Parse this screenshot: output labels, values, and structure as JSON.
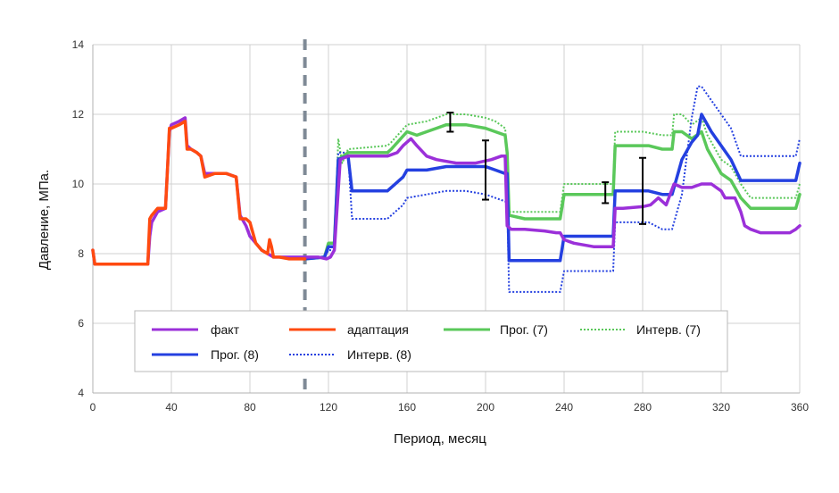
{
  "chart_data": {
    "type": "line",
    "xlabel": "Период, месяц",
    "ylabel": "Давление, МПа.",
    "xlim": [
      0,
      360
    ],
    "ylim": [
      4,
      14
    ],
    "x_ticks": [
      "0",
      "40",
      "80",
      "120",
      "160",
      "200",
      "240",
      "280",
      "320",
      "360"
    ],
    "y_ticks": [
      "4",
      "6",
      "8",
      "10",
      "12",
      "14"
    ],
    "grid": true,
    "legend_placement": "lower-center inside plot",
    "history_boundary_x": 108,
    "series": [
      {
        "name": "факт",
        "color": "#9b30d9",
        "style": "solid",
        "x": [
          0,
          1,
          2,
          28,
          29,
          30,
          33,
          37,
          38,
          39,
          40,
          44,
          47,
          48,
          50,
          53,
          55,
          57,
          62,
          68,
          73,
          75,
          78,
          80,
          83,
          86,
          89,
          92,
          95,
          100,
          105,
          110,
          115,
          119,
          121,
          123,
          126,
          130,
          140,
          150,
          155,
          158,
          162,
          165,
          170,
          175,
          185,
          195,
          203,
          208,
          210,
          211,
          213,
          220,
          230,
          236,
          238,
          240,
          245,
          255,
          265,
          266,
          270,
          280,
          284,
          288,
          292,
          296,
          300,
          305,
          310,
          315,
          320,
          322,
          327,
          330,
          332,
          335,
          340,
          350,
          355,
          358,
          360
        ],
        "y": [
          8.1,
          7.7,
          7.7,
          7.7,
          8.5,
          8.9,
          9.2,
          9.3,
          10.4,
          11.5,
          11.7,
          11.8,
          11.9,
          11.1,
          11.0,
          10.9,
          10.8,
          10.3,
          10.3,
          10.3,
          10.2,
          9.1,
          8.8,
          8.5,
          8.3,
          8.1,
          8.0,
          7.9,
          7.9,
          7.9,
          7.9,
          7.9,
          7.9,
          7.85,
          7.9,
          8.1,
          10.7,
          10.8,
          10.8,
          10.8,
          10.9,
          11.1,
          11.3,
          11.1,
          10.8,
          10.7,
          10.6,
          10.6,
          10.7,
          10.8,
          10.8,
          8.8,
          8.7,
          8.7,
          8.65,
          8.6,
          8.6,
          8.4,
          8.3,
          8.2,
          8.2,
          9.3,
          9.3,
          9.35,
          9.4,
          9.6,
          9.4,
          10.0,
          9.9,
          9.9,
          10.0,
          10.0,
          9.8,
          9.6,
          9.6,
          9.2,
          8.8,
          8.7,
          8.6,
          8.6,
          8.6,
          8.7,
          8.8
        ]
      },
      {
        "name": "адаптация",
        "color": "#ff4a10",
        "style": "solid",
        "x": [
          0,
          1,
          2,
          28,
          29,
          30,
          33,
          37,
          38,
          39,
          40,
          44,
          47,
          48,
          50,
          53,
          55,
          57,
          62,
          68,
          73,
          75,
          78,
          80,
          83,
          86,
          89,
          90,
          91,
          92,
          95,
          100,
          105,
          108
        ],
        "y": [
          8.1,
          7.7,
          7.7,
          7.7,
          9.0,
          9.1,
          9.3,
          9.3,
          10.4,
          11.6,
          11.6,
          11.7,
          11.8,
          11.0,
          11.0,
          10.9,
          10.8,
          10.2,
          10.3,
          10.3,
          10.2,
          9.0,
          9.0,
          8.9,
          8.3,
          8.1,
          8.0,
          8.4,
          8.2,
          7.9,
          7.9,
          7.85,
          7.85,
          7.85
        ]
      },
      {
        "name": "Прог. (7)",
        "color": "#5ac85a",
        "style": "solid",
        "x": [
          108,
          118,
          120,
          123,
          125,
          130,
          140,
          150,
          152,
          160,
          165,
          170,
          175,
          180,
          190,
          200,
          205,
          210,
          211,
          212,
          220,
          230,
          238,
          240,
          250,
          260,
          265,
          266,
          270,
          280,
          283,
          290,
          295,
          296,
          300,
          305,
          310,
          313,
          318,
          320,
          325,
          330,
          335,
          340,
          350,
          358,
          360
        ],
        "y": [
          7.85,
          7.9,
          8.3,
          8.3,
          10.7,
          10.9,
          10.9,
          10.9,
          11.0,
          11.5,
          11.4,
          11.5,
          11.6,
          11.7,
          11.7,
          11.6,
          11.5,
          11.4,
          10.9,
          9.1,
          9.0,
          9.0,
          9.0,
          9.7,
          9.7,
          9.7,
          9.7,
          11.1,
          11.1,
          11.1,
          11.1,
          11.0,
          11.0,
          11.5,
          11.5,
          11.3,
          11.5,
          11.0,
          10.5,
          10.3,
          10.1,
          9.6,
          9.3,
          9.3,
          9.3,
          9.3,
          9.7
        ]
      },
      {
        "name": "Интерв. (7)",
        "color": "#5ac85a",
        "style": "dotted",
        "x": [
          108,
          118,
          120,
          123,
          125,
          127,
          130,
          150,
          152,
          160,
          170,
          175,
          180,
          190,
          200,
          205,
          210,
          211,
          212,
          220,
          230,
          238,
          240,
          250,
          260,
          265,
          266,
          270,
          280,
          290,
          295,
          296,
          300,
          305,
          310,
          313,
          318,
          320,
          325,
          330,
          335,
          340,
          350,
          358,
          360
        ],
        "y": [
          7.85,
          7.9,
          8.2,
          8.2,
          11.3,
          10.6,
          11.0,
          11.1,
          11.2,
          11.7,
          11.8,
          11.9,
          12.0,
          12.0,
          11.9,
          11.8,
          11.6,
          10.8,
          9.2,
          9.2,
          9.2,
          9.2,
          10.0,
          10.0,
          10.0,
          10.0,
          11.5,
          11.5,
          11.5,
          11.4,
          11.4,
          12.0,
          12.0,
          11.7,
          11.9,
          11.4,
          10.9,
          10.7,
          10.5,
          10.0,
          9.6,
          9.6,
          9.6,
          9.6,
          10.0
        ]
      },
      {
        "name": "Прог. (8)",
        "color": "#2440e0",
        "style": "solid",
        "x": [
          108,
          118,
          120,
          123,
          125,
          130,
          132,
          140,
          150,
          158,
          160,
          170,
          180,
          190,
          200,
          205,
          210,
          211,
          212,
          220,
          230,
          238,
          240,
          250,
          260,
          265,
          266,
          270,
          280,
          283,
          290,
          295,
          300,
          305,
          308,
          310,
          315,
          320,
          325,
          330,
          340,
          350,
          358,
          360
        ],
        "y": [
          7.85,
          7.9,
          8.2,
          8.2,
          10.7,
          10.8,
          9.8,
          9.8,
          9.8,
          10.2,
          10.4,
          10.4,
          10.5,
          10.5,
          10.5,
          10.4,
          10.3,
          10.3,
          7.8,
          7.8,
          7.8,
          7.8,
          8.5,
          8.5,
          8.5,
          8.5,
          9.8,
          9.8,
          9.8,
          9.8,
          9.7,
          9.7,
          10.7,
          11.2,
          11.4,
          12.0,
          11.5,
          11.1,
          10.7,
          10.1,
          10.1,
          10.1,
          10.1,
          10.6
        ]
      },
      {
        "name": "Интерв. (8)",
        "color": "#2440e0",
        "style": "dotted",
        "x": [
          108,
          118,
          120,
          123,
          125,
          130,
          132,
          140,
          150,
          158,
          160,
          170,
          180,
          190,
          200,
          205,
          210,
          211,
          212,
          220,
          230,
          238,
          240,
          250,
          260,
          265,
          266,
          270,
          280,
          283,
          290,
          295,
          300,
          305,
          308,
          310,
          315,
          320,
          325,
          330,
          340,
          350,
          358,
          360
        ],
        "y": [
          7.85,
          7.9,
          8.1,
          8.1,
          10.9,
          10.9,
          9.0,
          9.0,
          9.0,
          9.4,
          9.6,
          9.7,
          9.8,
          9.8,
          9.7,
          9.6,
          9.5,
          9.5,
          6.9,
          6.9,
          6.9,
          6.9,
          7.5,
          7.5,
          7.5,
          7.5,
          8.9,
          8.9,
          8.9,
          8.9,
          8.7,
          8.7,
          9.7,
          11.9,
          12.8,
          12.8,
          12.4,
          12.0,
          11.6,
          10.8,
          10.8,
          10.8,
          10.8,
          11.3
        ]
      }
    ],
    "error_bars": [
      {
        "x": 182,
        "low": 11.5,
        "high": 12.05
      },
      {
        "x": 200,
        "low": 9.55,
        "high": 11.25
      },
      {
        "x": 261,
        "low": 9.45,
        "high": 10.05
      },
      {
        "x": 280,
        "low": 8.85,
        "high": 10.75
      }
    ]
  }
}
